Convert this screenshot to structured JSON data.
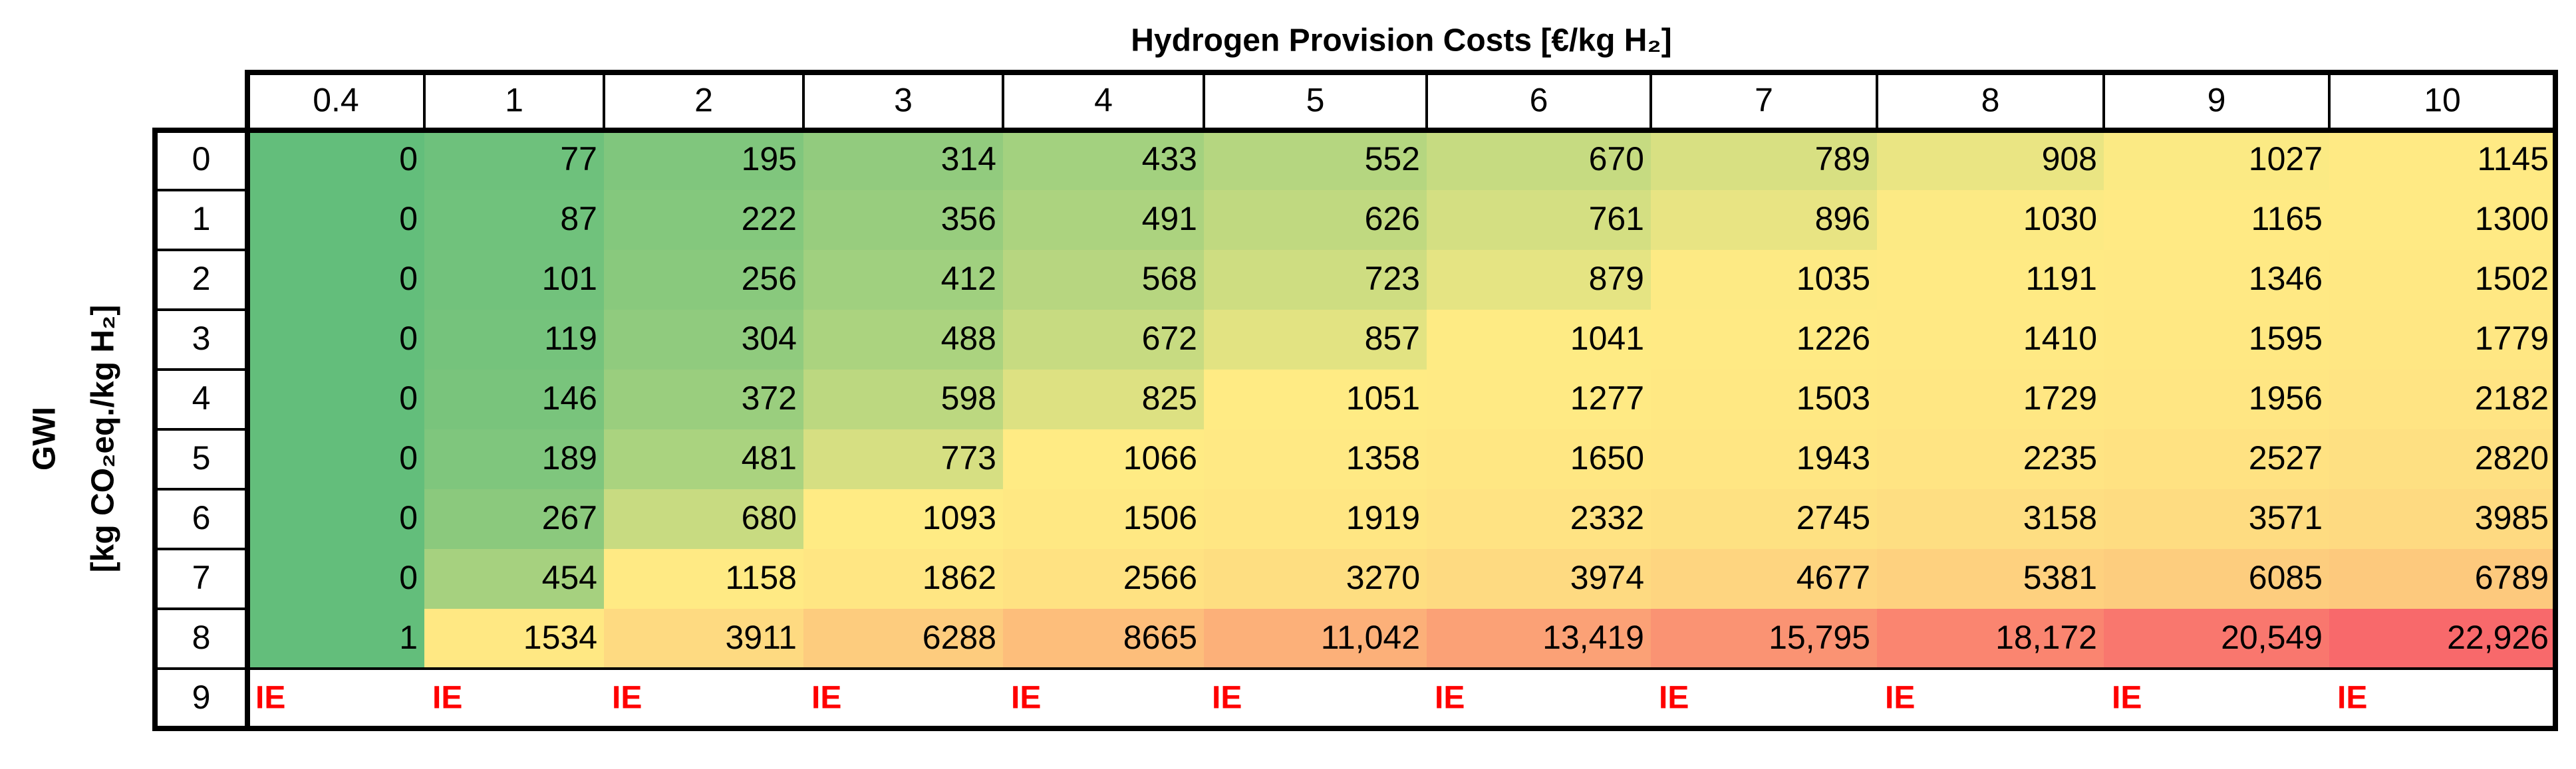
{
  "chart_data": {
    "type": "heatmap",
    "title": "Hydrogen Provision Costs [€/kg H₂]",
    "xlabel": "Hydrogen Provision Costs [€/kg H₂]",
    "ylabel_line1": "GWI",
    "ylabel_line2": "[kg CO₂eq./kg H₂]",
    "x_categories": [
      "0.4",
      "1",
      "2",
      "3",
      "4",
      "5",
      "6",
      "7",
      "8",
      "9",
      "10"
    ],
    "y_categories": [
      "0",
      "1",
      "2",
      "3",
      "4",
      "5",
      "6",
      "7",
      "8",
      "9"
    ],
    "values": [
      [
        0,
        77,
        195,
        314,
        433,
        552,
        670,
        789,
        908,
        1027,
        1145
      ],
      [
        0,
        87,
        222,
        356,
        491,
        626,
        761,
        896,
        1030,
        1165,
        1300
      ],
      [
        0,
        101,
        256,
        412,
        568,
        723,
        879,
        1035,
        1191,
        1346,
        1502
      ],
      [
        0,
        119,
        304,
        488,
        672,
        857,
        1041,
        1226,
        1410,
        1595,
        1779
      ],
      [
        0,
        146,
        372,
        598,
        825,
        1051,
        1277,
        1503,
        1729,
        1956,
        2182
      ],
      [
        0,
        189,
        481,
        773,
        1066,
        1358,
        1650,
        1943,
        2235,
        2527,
        2820
      ],
      [
        0,
        267,
        680,
        1093,
        1506,
        1919,
        2332,
        2745,
        3158,
        3571,
        3985
      ],
      [
        0,
        454,
        1158,
        1862,
        2566,
        3270,
        3974,
        4677,
        5381,
        6085,
        6789
      ],
      [
        1,
        1534,
        3911,
        6288,
        8665,
        11042,
        13419,
        15795,
        18172,
        20549,
        22926
      ],
      [
        null,
        null,
        null,
        null,
        null,
        null,
        null,
        null,
        null,
        null,
        null
      ]
    ],
    "display_values": [
      [
        "0",
        "77",
        "195",
        "314",
        "433",
        "552",
        "670",
        "789",
        "908",
        "1027",
        "1145"
      ],
      [
        "0",
        "87",
        "222",
        "356",
        "491",
        "626",
        "761",
        "896",
        "1030",
        "1165",
        "1300"
      ],
      [
        "0",
        "101",
        "256",
        "412",
        "568",
        "723",
        "879",
        "1035",
        "1191",
        "1346",
        "1502"
      ],
      [
        "0",
        "119",
        "304",
        "488",
        "672",
        "857",
        "1041",
        "1226",
        "1410",
        "1595",
        "1779"
      ],
      [
        "0",
        "146",
        "372",
        "598",
        "825",
        "1051",
        "1277",
        "1503",
        "1729",
        "1956",
        "2182"
      ],
      [
        "0",
        "189",
        "481",
        "773",
        "1066",
        "1358",
        "1650",
        "1943",
        "2235",
        "2527",
        "2820"
      ],
      [
        "0",
        "267",
        "680",
        "1093",
        "1506",
        "1919",
        "2332",
        "2745",
        "3158",
        "3571",
        "3985"
      ],
      [
        "0",
        "454",
        "1158",
        "1862",
        "2566",
        "3270",
        "3974",
        "4677",
        "5381",
        "6085",
        "6789"
      ],
      [
        "1",
        "1534",
        "3911",
        "6288",
        "8665",
        "11,042",
        "13,419",
        "15,795",
        "18,172",
        "20,549",
        "22,926"
      ],
      [
        "IE",
        "IE",
        "IE",
        "IE",
        "IE",
        "IE",
        "IE",
        "IE",
        "IE",
        "IE",
        "IE"
      ]
    ],
    "na_label": "IE",
    "color_scale": {
      "low": "#63be7b",
      "mid": "#ffeb84",
      "high": "#f8696b"
    },
    "na_text_color": "#ff0000"
  }
}
